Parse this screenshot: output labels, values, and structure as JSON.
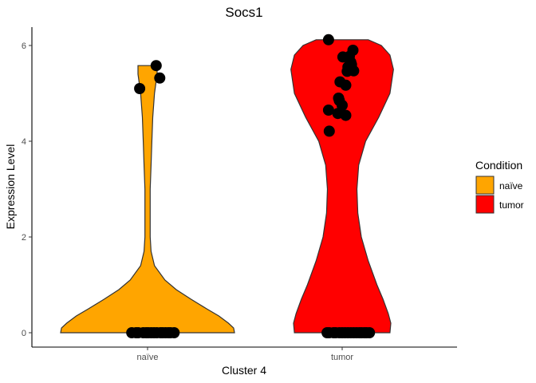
{
  "chart_data": {
    "type": "violin",
    "title": "Socs1",
    "xlabel": "Cluster 4",
    "ylabel": "Expression Level",
    "categories": [
      "naïve",
      "tumor"
    ],
    "ylim": [
      -0.3,
      6.4
    ],
    "yticks": [
      0,
      2,
      4,
      6
    ],
    "grid": false,
    "legend": {
      "title": "Condition",
      "position": "right",
      "entries": [
        {
          "label": "naïve",
          "color": "#FFA500"
        },
        {
          "label": "tumor",
          "color": "#FF0000"
        }
      ]
    },
    "violins": [
      {
        "category": "naïve",
        "color": "#FFA500",
        "max": 5.58,
        "profile": [
          [
            0,
            1
          ],
          [
            0.1,
            0.99
          ],
          [
            0.2,
            0.93
          ],
          [
            0.35,
            0.82
          ],
          [
            0.5,
            0.68
          ],
          [
            0.7,
            0.5
          ],
          [
            0.9,
            0.33
          ],
          [
            1.1,
            0.2
          ],
          [
            1.4,
            0.08
          ],
          [
            1.7,
            0.04
          ],
          [
            2.0,
            0.03
          ],
          [
            3.0,
            0.03
          ],
          [
            3.5,
            0.04
          ],
          [
            4.0,
            0.05
          ],
          [
            4.5,
            0.06
          ],
          [
            5.0,
            0.08
          ],
          [
            5.4,
            0.11
          ],
          [
            5.58,
            0.11
          ]
        ]
      },
      {
        "category": "tumor",
        "color": "#FF0000",
        "max": 6.12,
        "profile": [
          [
            0,
            0.55
          ],
          [
            0.2,
            0.56
          ],
          [
            0.4,
            0.53
          ],
          [
            0.7,
            0.47
          ],
          [
            1.0,
            0.4
          ],
          [
            1.5,
            0.3
          ],
          [
            2.0,
            0.22
          ],
          [
            2.5,
            0.18
          ],
          [
            3.0,
            0.17
          ],
          [
            3.5,
            0.19
          ],
          [
            4.0,
            0.27
          ],
          [
            4.5,
            0.42
          ],
          [
            5.0,
            0.55
          ],
          [
            5.5,
            0.59
          ],
          [
            5.8,
            0.55
          ],
          [
            6.0,
            0.45
          ],
          [
            6.12,
            0.3
          ]
        ]
      }
    ],
    "points": {
      "naïve": [
        {
          "jitter": -0.22,
          "y": 0
        },
        {
          "jitter": -0.16,
          "y": 0
        },
        {
          "jitter": -0.13,
          "y": 0
        },
        {
          "jitter": -0.06,
          "y": 0
        },
        {
          "jitter": -0.02,
          "y": 0
        },
        {
          "jitter": 0.01,
          "y": 0
        },
        {
          "jitter": 0.05,
          "y": 0
        },
        {
          "jitter": 0.09,
          "y": 0
        },
        {
          "jitter": 0.13,
          "y": 0
        },
        {
          "jitter": 0.18,
          "y": 0
        },
        {
          "jitter": 0.21,
          "y": 0
        },
        {
          "jitter": 0.25,
          "y": 0
        },
        {
          "jitter": 0.29,
          "y": 0
        },
        {
          "jitter": 0.32,
          "y": 0
        },
        {
          "jitter": 0.37,
          "y": 0
        },
        {
          "jitter": -0.11,
          "y": 5.1
        },
        {
          "jitter": 0.12,
          "y": 5.58
        },
        {
          "jitter": 0.17,
          "y": 5.32
        }
      ],
      "tumor": [
        {
          "jitter": -0.21,
          "y": 0
        },
        {
          "jitter": -0.18,
          "y": 0
        },
        {
          "jitter": -0.12,
          "y": 0
        },
        {
          "jitter": -0.09,
          "y": 0
        },
        {
          "jitter": -0.04,
          "y": 0
        },
        {
          "jitter": 0.0,
          "y": 0
        },
        {
          "jitter": 0.04,
          "y": 0
        },
        {
          "jitter": 0.08,
          "y": 0
        },
        {
          "jitter": 0.12,
          "y": 0
        },
        {
          "jitter": 0.16,
          "y": 0
        },
        {
          "jitter": 0.2,
          "y": 0
        },
        {
          "jitter": 0.24,
          "y": 0
        },
        {
          "jitter": 0.27,
          "y": 0
        },
        {
          "jitter": 0.31,
          "y": 0
        },
        {
          "jitter": 0.34,
          "y": 0
        },
        {
          "jitter": 0.38,
          "y": 0
        },
        {
          "jitter": -0.19,
          "y": 6.12
        },
        {
          "jitter": -0.19,
          "y": 4.65
        },
        {
          "jitter": -0.18,
          "y": 4.21
        },
        {
          "jitter": -0.06,
          "y": 4.58
        },
        {
          "jitter": -0.04,
          "y": 4.85
        },
        {
          "jitter": -0.05,
          "y": 4.9
        },
        {
          "jitter": -0.03,
          "y": 5.24
        },
        {
          "jitter": 0.0,
          "y": 4.75
        },
        {
          "jitter": 0.01,
          "y": 5.76
        },
        {
          "jitter": 0.05,
          "y": 4.54
        },
        {
          "jitter": 0.05,
          "y": 5.17
        },
        {
          "jitter": 0.07,
          "y": 5.46
        },
        {
          "jitter": 0.08,
          "y": 5.55
        },
        {
          "jitter": 0.1,
          "y": 5.77
        },
        {
          "jitter": 0.12,
          "y": 5.65
        },
        {
          "jitter": 0.13,
          "y": 5.6
        },
        {
          "jitter": 0.15,
          "y": 5.9
        },
        {
          "jitter": 0.16,
          "y": 5.47
        }
      ]
    }
  }
}
